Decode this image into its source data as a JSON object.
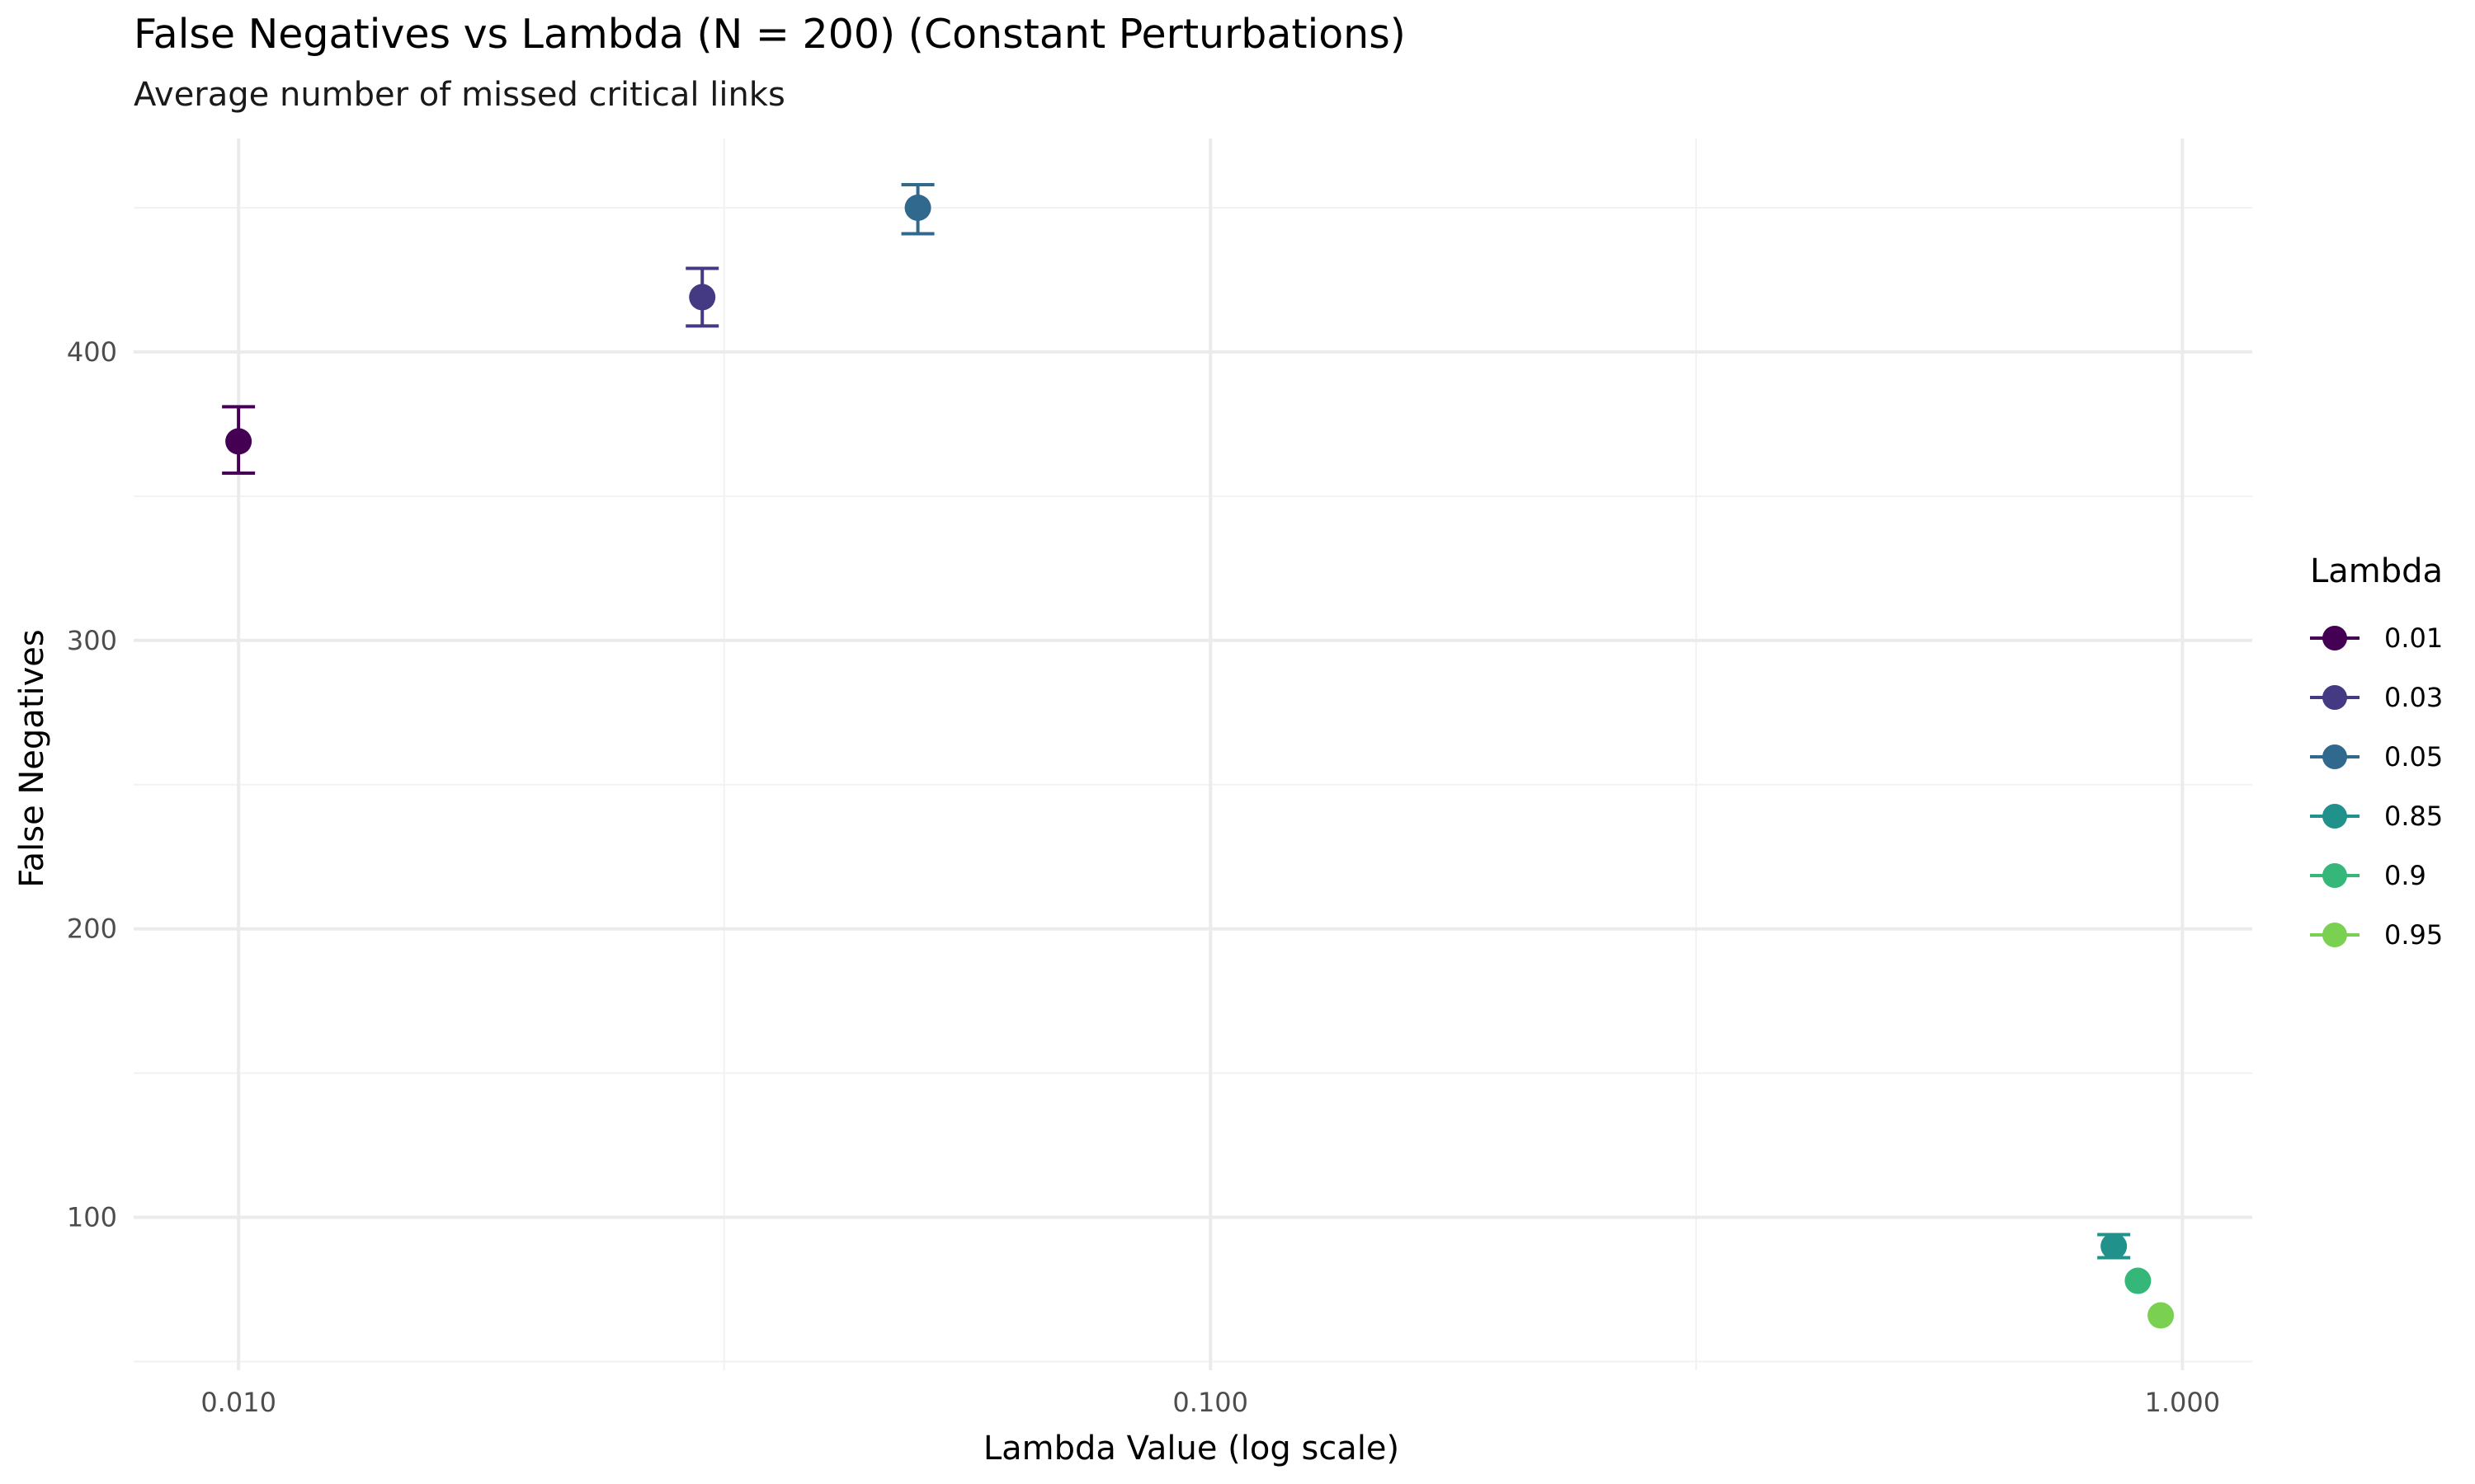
{
  "chart_data": {
    "type": "scatter",
    "title": "False Negatives vs Lambda (N = 200) (Constant Perturbations)",
    "subtitle": "Average number of missed critical links",
    "xlabel": "Lambda Value (log scale)",
    "ylabel": "False Negatives",
    "x_scale": "log",
    "xlim": [
      0.0078,
      1.18
    ],
    "ylim": [
      47,
      474
    ],
    "x_ticks": [
      0.01,
      0.1,
      1.0
    ],
    "x_tick_labels": [
      "0.010",
      "0.100",
      "1.000"
    ],
    "x_minor_ticks": [
      0.0316,
      0.316
    ],
    "y_ticks": [
      100,
      200,
      300,
      400
    ],
    "y_tick_labels": [
      "100",
      "200",
      "300",
      "400"
    ],
    "y_minor_ticks": [
      50,
      150,
      250,
      350,
      450
    ],
    "grid": true,
    "legend": {
      "title": "Lambda",
      "position": "right",
      "entries": [
        "0.01",
        "0.03",
        "0.05",
        "0.85",
        "0.9",
        "0.95"
      ]
    },
    "series": [
      {
        "name": "0.01",
        "x": 0.01,
        "y": 369,
        "error_low": 358,
        "error_high": 381,
        "color": "#440154"
      },
      {
        "name": "0.03",
        "x": 0.03,
        "y": 419,
        "error_low": 409,
        "error_high": 429,
        "color": "#443983"
      },
      {
        "name": "0.05",
        "x": 0.05,
        "y": 450,
        "error_low": 441,
        "error_high": 458,
        "color": "#31688e"
      },
      {
        "name": "0.85",
        "x": 0.85,
        "y": 90,
        "error_low": 86,
        "error_high": 94,
        "color": "#21918c"
      },
      {
        "name": "0.9",
        "x": 0.9,
        "y": 78,
        "error_low": 78,
        "error_high": 78,
        "color": "#35b779"
      },
      {
        "name": "0.95",
        "x": 0.95,
        "y": 66,
        "error_low": 66,
        "error_high": 66,
        "color": "#7ad151"
      }
    ]
  }
}
